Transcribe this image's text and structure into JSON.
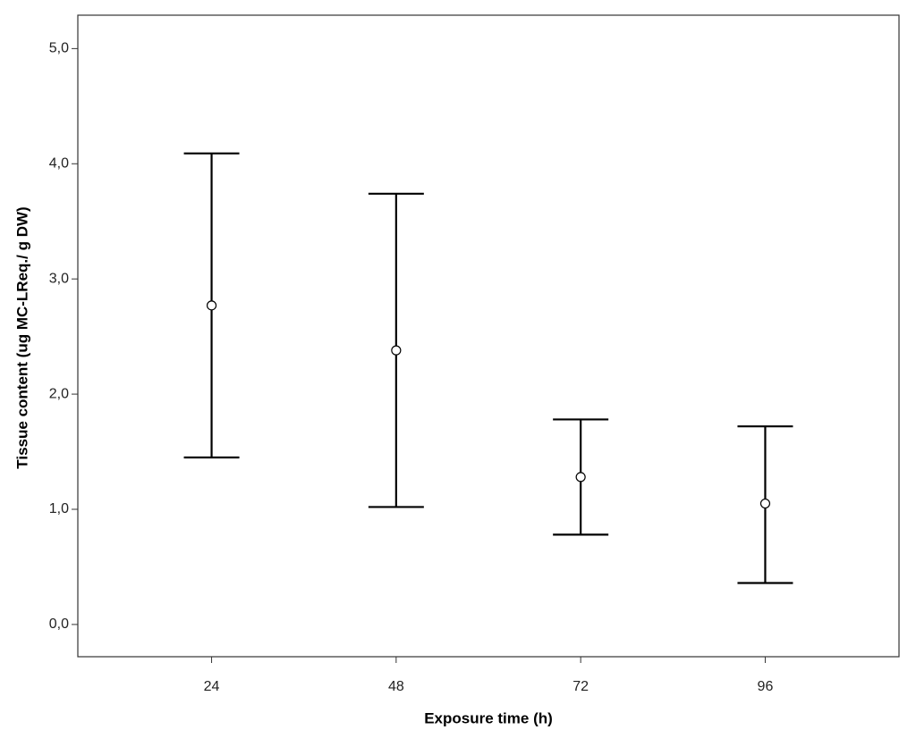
{
  "chart_data": {
    "type": "errorbar",
    "x_label": "Exposure time (h)",
    "y_label": "Tissue content (ug MC-LReq./ g DW)",
    "categories": [
      "24",
      "48",
      "72",
      "96"
    ],
    "values": [
      2.77,
      2.38,
      1.28,
      1.05
    ],
    "lower": [
      1.45,
      1.02,
      0.78,
      0.36
    ],
    "upper": [
      4.09,
      3.74,
      1.78,
      1.72
    ],
    "color": "#000000",
    "ylim": [
      -0.28,
      5.29
    ],
    "yticks": [
      {
        "value": 0,
        "label": "0,0"
      },
      {
        "value": 1,
        "label": "1,0"
      },
      {
        "value": 2,
        "label": "2,0"
      },
      {
        "value": 3,
        "label": "3,0"
      },
      {
        "value": 4,
        "label": "4,0"
      },
      {
        "value": 5,
        "label": "5,0"
      }
    ],
    "grid": false
  }
}
